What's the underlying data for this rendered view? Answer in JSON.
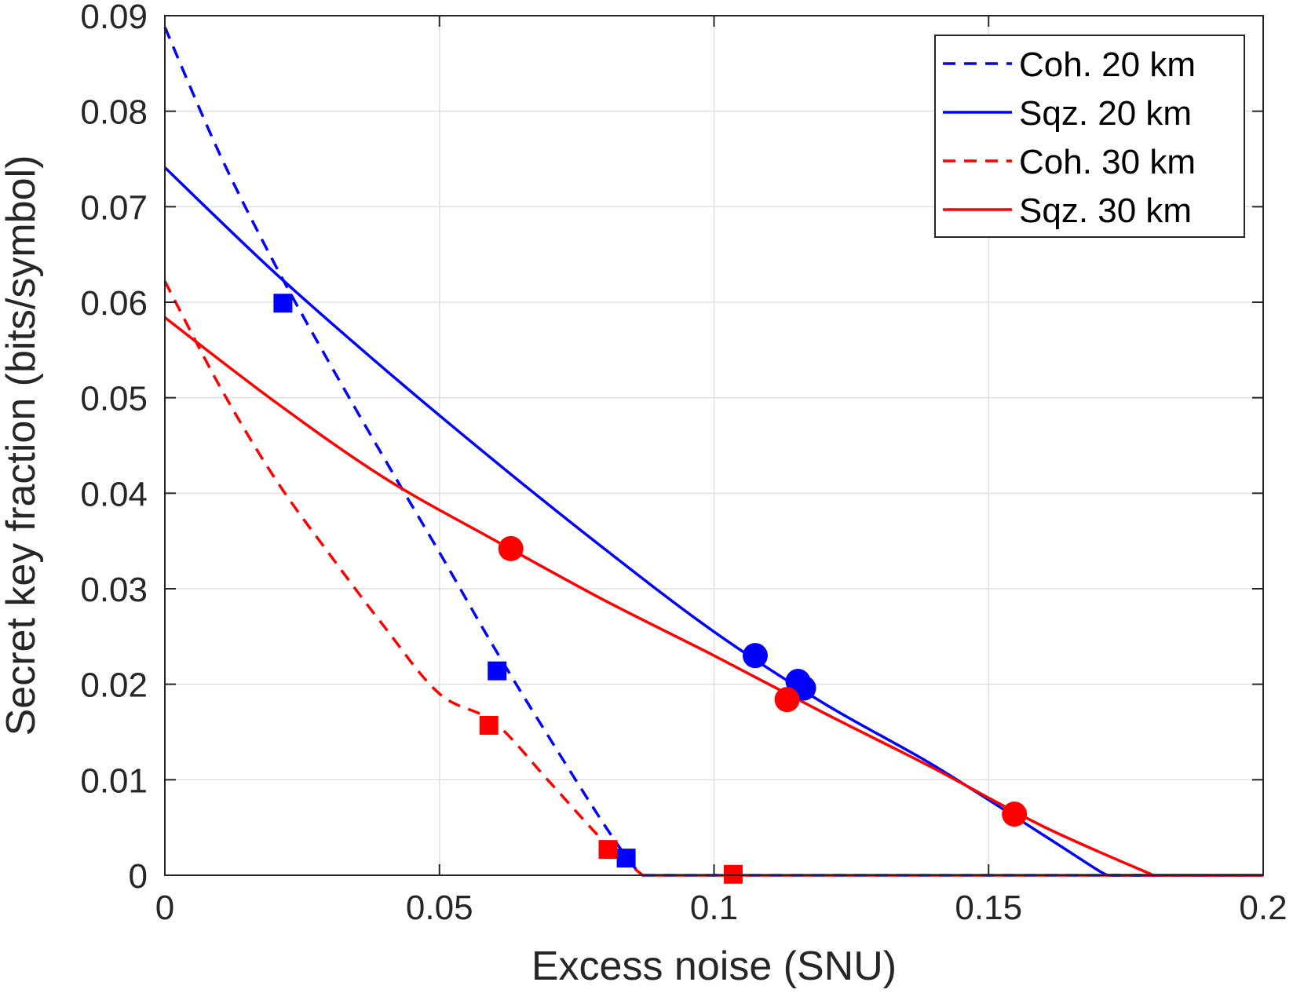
{
  "chart_data": {
    "type": "line",
    "xlabel": "Excess noise (SNU)",
    "ylabel": "Secret key fraction (bits/symbol)",
    "xlim": [
      0,
      0.2
    ],
    "ylim": [
      0,
      0.09
    ],
    "xticks": [
      0,
      0.05,
      0.1,
      0.15,
      0.2
    ],
    "xtick_labels": [
      "0",
      "0.05",
      "0.1",
      "0.15",
      "0.2"
    ],
    "yticks": [
      0,
      0.01,
      0.02,
      0.03,
      0.04,
      0.05,
      0.06,
      0.07,
      0.08,
      0.09
    ],
    "ytick_labels": [
      "0",
      "0.01",
      "0.02",
      "0.03",
      "0.04",
      "0.05",
      "0.06",
      "0.07",
      "0.08",
      "0.09"
    ],
    "grid": true,
    "legend": "top-right",
    "series": [
      {
        "name": "Coh. 20 km",
        "color": "#0000ff",
        "style": "dashed",
        "x": [
          0,
          0.01,
          0.02,
          0.03,
          0.04,
          0.05,
          0.06,
          0.07,
          0.08,
          0.085,
          0.087,
          0.1,
          0.15,
          0.2
        ],
        "y": [
          0.0888,
          0.0755,
          0.064,
          0.0536,
          0.0436,
          0.0338,
          0.0238,
          0.0144,
          0.0053,
          0.0012,
          0,
          0,
          0,
          0
        ]
      },
      {
        "name": "Sqz. 20 km",
        "color": "#0000ff",
        "style": "solid",
        "x": [
          0,
          0.02,
          0.04,
          0.06,
          0.08,
          0.1,
          0.12,
          0.14,
          0.16,
          0.17,
          0.172,
          0.2
        ],
        "y": [
          0.0741,
          0.0631,
          0.053,
          0.0434,
          0.0342,
          0.0255,
          0.018,
          0.0115,
          0.0042,
          0.0005,
          0,
          0
        ]
      },
      {
        "name": "Coh. 30 km",
        "color": "#ff0000",
        "style": "dashed",
        "x": [
          0,
          0.01,
          0.02,
          0.03,
          0.04,
          0.05,
          0.06,
          0.07,
          0.08,
          0.087,
          0.1,
          0.15,
          0.2
        ],
        "y": [
          0.0622,
          0.0512,
          0.0416,
          0.0336,
          0.026,
          0.019,
          0.016,
          0.0098,
          0.0035,
          0,
          0,
          0,
          0
        ]
      },
      {
        "name": "Sqz. 30 km",
        "color": "#ff0000",
        "style": "solid",
        "x": [
          0,
          0.02,
          0.04,
          0.06,
          0.08,
          0.1,
          0.12,
          0.14,
          0.16,
          0.18,
          0.2
        ],
        "y": [
          0.0584,
          0.0496,
          0.0416,
          0.0351,
          0.0288,
          0.023,
          0.017,
          0.0112,
          0.0051,
          0,
          0
        ]
      }
    ],
    "markers": [
      {
        "series": "Coh. 20 km",
        "shape": "square",
        "color": "#0000ff",
        "x": [
          0.0215,
          0.0605,
          0.084
        ],
        "y": [
          0.0599,
          0.0214,
          0.0018
        ]
      },
      {
        "series": "Coh. 30 km",
        "shape": "square",
        "color": "#ff0000",
        "x": [
          0.059,
          0.0807,
          0.1035
        ],
        "y": [
          0.0157,
          0.0027,
          0.0001
        ]
      },
      {
        "series": "Sqz. 20 km",
        "shape": "circle",
        "color": "#0000ff",
        "x": [
          0.1075,
          0.1153,
          0.1163
        ],
        "y": [
          0.023,
          0.0203,
          0.0196
        ]
      },
      {
        "series": "Sqz. 30 km",
        "shape": "circle",
        "color": "#ff0000",
        "x": [
          0.063,
          0.1133,
          0.1547
        ],
        "y": [
          0.0342,
          0.0184,
          0.0064
        ]
      }
    ]
  }
}
